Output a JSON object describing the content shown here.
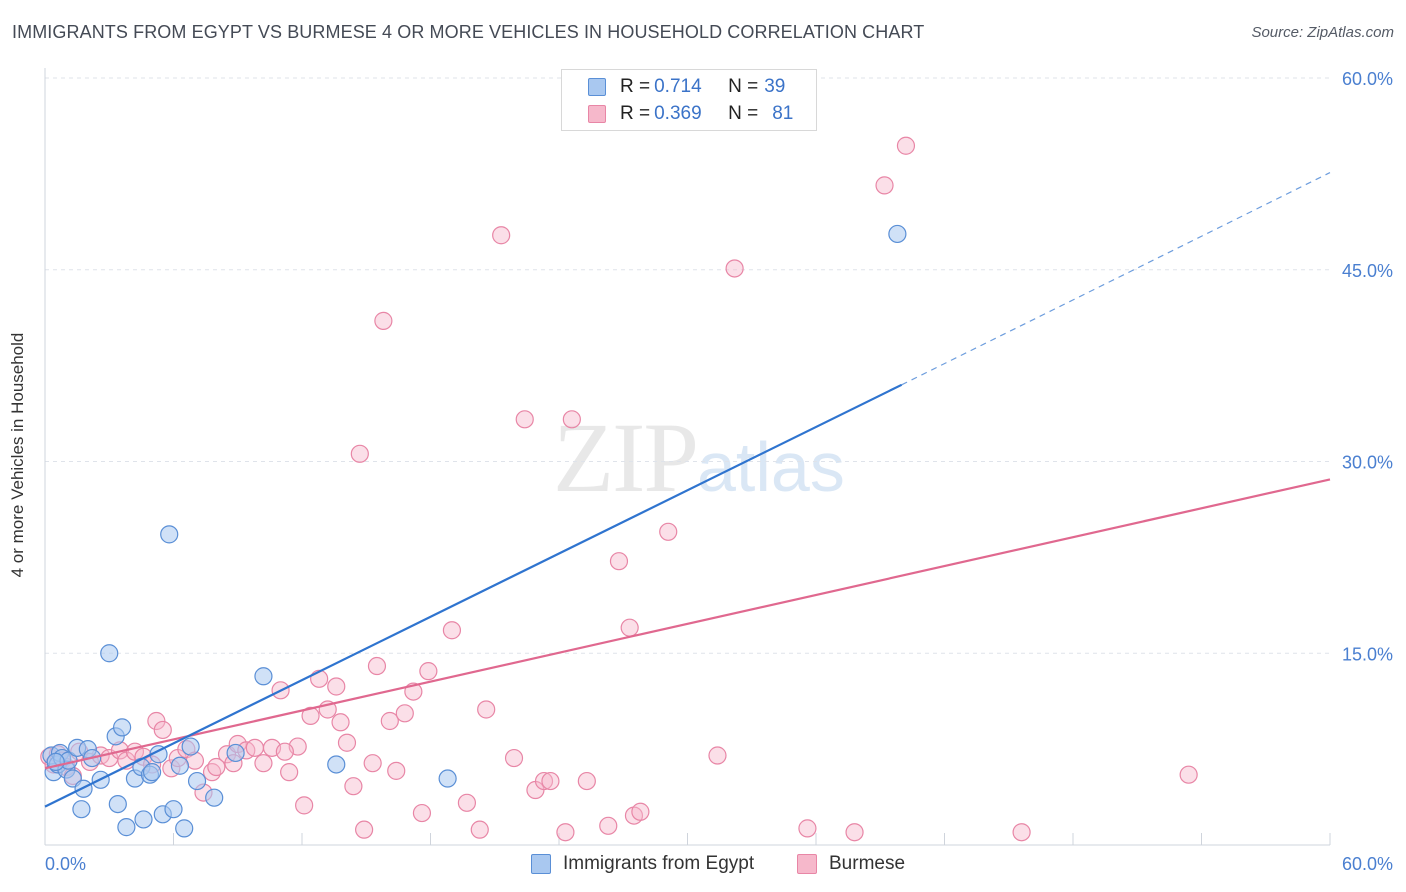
{
  "title": "IMMIGRANTS FROM EGYPT VS BURMESE 4 OR MORE VEHICLES IN HOUSEHOLD CORRELATION CHART",
  "source": "Source: ZipAtlas.com",
  "watermark": {
    "zip": "ZIP",
    "atlas": "atlas"
  },
  "legend": {
    "egypt": {
      "r_label": "R = ",
      "r_value": "0.714",
      "n_label": "N = ",
      "n_value": "39"
    },
    "burmese": {
      "r_label": "R = ",
      "r_value": "0.369",
      "n_label": "N = ",
      "n_value": "81"
    }
  },
  "colors": {
    "egypt_fill": "#a9c8f0",
    "egypt_stroke": "#5a8fd6",
    "egypt_line": "#2f74cf",
    "burmese_fill": "#f6b8cb",
    "burmese_stroke": "#e886a6",
    "burmese_line": "#e0688f",
    "grid": "#dfe3ea",
    "tick_text": "#4a7fd0"
  },
  "chart_data": {
    "type": "scatter",
    "title": "IMMIGRANTS FROM EGYPT VS BURMESE 4 OR MORE VEHICLES IN HOUSEHOLD CORRELATION CHART",
    "xlabel": "",
    "ylabel": "4 or more Vehicles in Household",
    "xlim": [
      0,
      60
    ],
    "ylim": [
      0,
      60
    ],
    "x_tick_labels": [
      "0.0%",
      "60.0%"
    ],
    "y_ticks": [
      15,
      30,
      45,
      60
    ],
    "y_tick_labels": [
      "15.0%",
      "30.0%",
      "45.0%",
      "60.0%"
    ],
    "grid": true,
    "legend_position": "top-center",
    "series": [
      {
        "name": "Immigrants from Egypt",
        "color": "#a9c8f0",
        "points": [
          [
            0.3,
            7.0
          ],
          [
            0.4,
            5.7
          ],
          [
            0.6,
            6.3
          ],
          [
            0.7,
            7.2
          ],
          [
            0.8,
            6.8
          ],
          [
            1.0,
            5.9
          ],
          [
            1.1,
            6.6
          ],
          [
            1.3,
            5.2
          ],
          [
            1.5,
            7.6
          ],
          [
            1.7,
            2.8
          ],
          [
            1.8,
            4.4
          ],
          [
            2.0,
            7.5
          ],
          [
            2.2,
            6.8
          ],
          [
            2.6,
            5.1
          ],
          [
            3.0,
            15.0
          ],
          [
            3.3,
            8.5
          ],
          [
            3.4,
            3.2
          ],
          [
            3.6,
            9.2
          ],
          [
            3.8,
            1.4
          ],
          [
            4.2,
            5.2
          ],
          [
            4.5,
            6.1
          ],
          [
            4.6,
            2.0
          ],
          [
            4.9,
            5.5
          ],
          [
            5.0,
            5.7
          ],
          [
            5.3,
            7.1
          ],
          [
            5.5,
            2.4
          ],
          [
            5.8,
            24.3
          ],
          [
            6.0,
            2.8
          ],
          [
            6.3,
            6.2
          ],
          [
            6.5,
            1.3
          ],
          [
            6.8,
            7.7
          ],
          [
            7.1,
            5.0
          ],
          [
            7.9,
            3.7
          ],
          [
            8.9,
            7.2
          ],
          [
            10.2,
            13.2
          ],
          [
            13.6,
            6.3
          ],
          [
            18.8,
            5.2
          ],
          [
            39.8,
            47.8
          ],
          [
            0.5,
            6.5
          ]
        ]
      },
      {
        "name": "Burmese",
        "color": "#f6b8cb",
        "points": [
          [
            0.2,
            6.9
          ],
          [
            0.4,
            6.3
          ],
          [
            0.6,
            7.1
          ],
          [
            0.8,
            6.6
          ],
          [
            1.0,
            6.1
          ],
          [
            1.3,
            5.4
          ],
          [
            1.6,
            7.3
          ],
          [
            2.1,
            6.5
          ],
          [
            2.6,
            7.0
          ],
          [
            3.0,
            6.8
          ],
          [
            3.5,
            7.4
          ],
          [
            3.8,
            6.6
          ],
          [
            4.2,
            7.3
          ],
          [
            4.6,
            6.9
          ],
          [
            5.0,
            6.3
          ],
          [
            5.2,
            9.7
          ],
          [
            5.5,
            9.0
          ],
          [
            5.9,
            6.0
          ],
          [
            6.2,
            6.8
          ],
          [
            6.6,
            7.5
          ],
          [
            7.0,
            6.6
          ],
          [
            7.4,
            4.1
          ],
          [
            7.8,
            5.7
          ],
          [
            8.0,
            6.1
          ],
          [
            8.5,
            7.1
          ],
          [
            8.8,
            6.4
          ],
          [
            9.0,
            7.9
          ],
          [
            9.4,
            7.4
          ],
          [
            9.8,
            7.6
          ],
          [
            10.2,
            6.4
          ],
          [
            10.6,
            7.6
          ],
          [
            11.0,
            12.1
          ],
          [
            11.4,
            5.7
          ],
          [
            11.8,
            7.7
          ],
          [
            12.1,
            3.1
          ],
          [
            12.4,
            10.1
          ],
          [
            12.8,
            13.0
          ],
          [
            13.2,
            10.6
          ],
          [
            13.6,
            12.4
          ],
          [
            13.8,
            9.6
          ],
          [
            14.1,
            8.0
          ],
          [
            14.4,
            4.6
          ],
          [
            14.7,
            30.6
          ],
          [
            14.9,
            1.2
          ],
          [
            15.3,
            6.4
          ],
          [
            15.5,
            14.0
          ],
          [
            15.8,
            41.0
          ],
          [
            16.1,
            9.7
          ],
          [
            16.4,
            5.8
          ],
          [
            16.8,
            10.3
          ],
          [
            17.2,
            12.0
          ],
          [
            17.6,
            2.5
          ],
          [
            17.9,
            13.6
          ],
          [
            19.0,
            16.8
          ],
          [
            19.7,
            3.3
          ],
          [
            20.3,
            1.2
          ],
          [
            20.6,
            10.6
          ],
          [
            21.3,
            47.7
          ],
          [
            21.9,
            6.8
          ],
          [
            22.4,
            33.3
          ],
          [
            22.9,
            4.3
          ],
          [
            23.3,
            5.0
          ],
          [
            23.6,
            5.0
          ],
          [
            24.3,
            1.0
          ],
          [
            24.6,
            33.3
          ],
          [
            25.3,
            5.0
          ],
          [
            26.3,
            1.5
          ],
          [
            26.8,
            22.2
          ],
          [
            27.3,
            17.0
          ],
          [
            27.5,
            2.3
          ],
          [
            27.8,
            2.6
          ],
          [
            29.1,
            24.5
          ],
          [
            31.4,
            7.0
          ],
          [
            32.2,
            45.1
          ],
          [
            35.6,
            1.3
          ],
          [
            37.8,
            1.0
          ],
          [
            39.2,
            51.6
          ],
          [
            40.2,
            54.7
          ],
          [
            45.6,
            1.0
          ],
          [
            53.4,
            5.5
          ],
          [
            11.2,
            7.3
          ]
        ]
      }
    ],
    "trend_lines": [
      {
        "series": "Immigrants from Egypt",
        "x": [
          0,
          40
        ],
        "y": [
          3.0,
          36.0
        ],
        "dashed_extension_to_x": 60,
        "dashed_extension_y": 52.6
      },
      {
        "series": "Burmese",
        "x": [
          0,
          60
        ],
        "y": [
          6.0,
          28.6
        ]
      }
    ]
  },
  "bottom_legend": {
    "egypt": "Immigrants from Egypt",
    "burmese": "Burmese"
  }
}
